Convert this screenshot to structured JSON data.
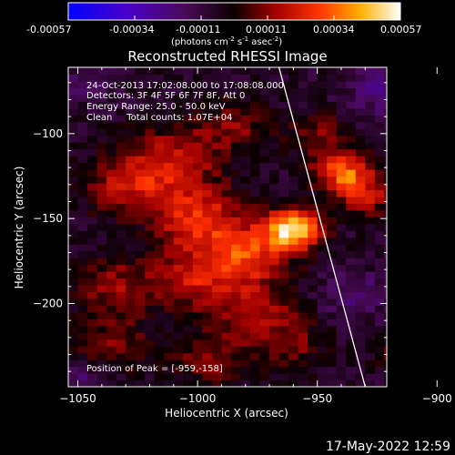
{
  "colorbar": {
    "ticks": [
      "-0.00057",
      "-0.00034",
      "-0.00011",
      "0.00011",
      "0.00034",
      "0.00057"
    ],
    "units_text": "(photons cm",
    "units_sup1": "-2",
    "units_mid": " s",
    "units_sup2": "-1",
    "units_mid2": " asec",
    "units_sup3": "-2",
    "units_end": ")"
  },
  "annotations": {
    "line1": "24-Oct-2013 17:02:08.000 to 17:08:08.000",
    "line2": "Detectors: 3F 4F 5F 6F 7F 8F, Att 0",
    "line3": "Energy Range: 25.0 - 50.0 keV",
    "line4": "Clean     Total counts: 1.07E+04",
    "peak": "Position of Peak = [-959,-158]"
  },
  "timestamp": "17-May-2022 12:59",
  "chart_data": {
    "type": "heatmap",
    "title": "Reconstructed RHESSI Image",
    "xlabel": "Heliocentric X (arcsec)",
    "ylabel": "Heliocentric Y (arcsec)",
    "xlim": [
      -1054,
      -921
    ],
    "ylim": [
      -249,
      -61
    ],
    "x_ticks": [
      -1050,
      -1000,
      -950,
      -900
    ],
    "y_ticks": [
      -100,
      -150,
      -200
    ],
    "colorbar_range": [
      -0.00057,
      0.00057
    ],
    "colormap": "blue-purple-black-red-yellow-white",
    "peak_position": [
      -959,
      -158
    ],
    "blobs": [
      {
        "x": -960,
        "y": -156,
        "amp": 1.0,
        "sigma": 8
      },
      {
        "x": -978,
        "y": -170,
        "amp": 0.55,
        "sigma": 12
      },
      {
        "x": -1000,
        "y": -150,
        "amp": 0.55,
        "sigma": 13
      },
      {
        "x": -1010,
        "y": -115,
        "amp": 0.45,
        "sigma": 14
      },
      {
        "x": -1030,
        "y": -130,
        "amp": 0.4,
        "sigma": 12
      },
      {
        "x": -1000,
        "y": -185,
        "amp": 0.45,
        "sigma": 13
      },
      {
        "x": -1035,
        "y": -190,
        "amp": 0.35,
        "sigma": 12
      },
      {
        "x": -975,
        "y": -205,
        "amp": 0.4,
        "sigma": 12
      },
      {
        "x": -1035,
        "y": -225,
        "amp": 0.3,
        "sigma": 11
      },
      {
        "x": -995,
        "y": -232,
        "amp": 0.3,
        "sigma": 11
      },
      {
        "x": -960,
        "y": -225,
        "amp": 0.25,
        "sigma": 10
      },
      {
        "x": -985,
        "y": -95,
        "amp": 0.3,
        "sigma": 10
      },
      {
        "x": -940,
        "y": -122,
        "amp": 0.65,
        "sigma": 8
      },
      {
        "x": -930,
        "y": -135,
        "amp": 0.45,
        "sigma": 9
      },
      {
        "x": -950,
        "y": -100,
        "amp": 0.3,
        "sigma": 9
      },
      {
        "x": -912,
        "y": -230,
        "amp": 0.35,
        "sigma": 8
      },
      {
        "x": -893,
        "y": -245,
        "amp": 0.3,
        "sigma": 7
      },
      {
        "x": -900,
        "y": -85,
        "amp": -0.3,
        "sigma": 10
      },
      {
        "x": -885,
        "y": -155,
        "amp": -0.3,
        "sigma": 12
      },
      {
        "x": -890,
        "y": -210,
        "amp": -0.45,
        "sigma": 9
      },
      {
        "x": -905,
        "y": -170,
        "amp": -0.3,
        "sigma": 10
      },
      {
        "x": -935,
        "y": -195,
        "amp": -0.22,
        "sigma": 10
      },
      {
        "x": -1045,
        "y": -70,
        "amp": -0.2,
        "sigma": 8
      },
      {
        "x": -1048,
        "y": -245,
        "amp": -0.25,
        "sigma": 8
      },
      {
        "x": -925,
        "y": -75,
        "amp": -0.25,
        "sigma": 9
      }
    ],
    "limb_line": {
      "x": [
        -966,
        -930
      ],
      "y": [
        -61,
        -249
      ]
    }
  }
}
